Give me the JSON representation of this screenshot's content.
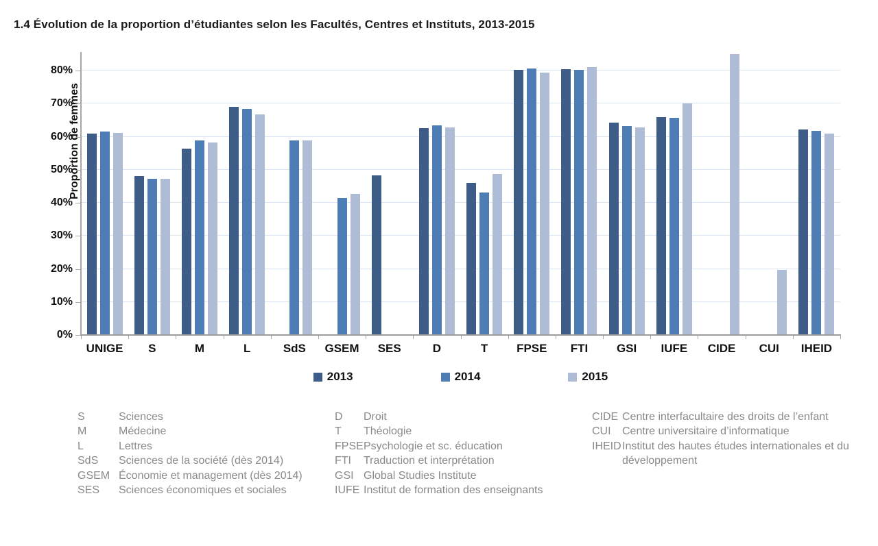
{
  "title": "1.4 Évolution de la proportion d’étudiantes selon les Facultés, Centres et Instituts, 2013-2015",
  "chart_data": {
    "type": "bar",
    "title": "1.4 Évolution de la proportion d’étudiantes selon les Facultés, Centres et Instituts, 2013-2015",
    "xlabel": "",
    "ylabel": "Proportion de femmes",
    "ylim": [
      0,
      80
    ],
    "ytick_step": 10,
    "ytick_suffix": "%",
    "grid": true,
    "legend_position": "bottom",
    "categories": [
      "UNIGE",
      "S",
      "M",
      "L",
      "SdS",
      "GSEM",
      "SES",
      "D",
      "T",
      "FPSE",
      "FTI",
      "GSI",
      "IUFE",
      "CIDE",
      "CUI",
      "IHEID"
    ],
    "series": [
      {
        "name": "2013",
        "color": "#3D5C88",
        "values": [
          61.0,
          48.1,
          56.3,
          69.0,
          null,
          null,
          48.2,
          62.5,
          46.0,
          80.3,
          80.5,
          64.2,
          66.0,
          null,
          null,
          62.2
        ]
      },
      {
        "name": "2014",
        "color": "#4E7DB5",
        "values": [
          61.6,
          47.3,
          58.9,
          68.3,
          58.8,
          41.5,
          null,
          63.5,
          43.2,
          80.7,
          80.3,
          63.3,
          65.7,
          null,
          null,
          61.8
        ]
      },
      {
        "name": "2015",
        "color": "#AFBCD6",
        "values": [
          61.1,
          47.3,
          58.2,
          66.7,
          58.8,
          42.6,
          null,
          62.8,
          48.8,
          79.3,
          81.1,
          62.8,
          70.0,
          85.0,
          19.6,
          60.9
        ]
      }
    ],
    "colors": {
      "gridline": "#dce6f2",
      "axis": "#a6a6a6",
      "label_text": "#111111",
      "footnote_text": "#8a8a8a"
    }
  },
  "footnotes": {
    "col1": [
      {
        "abbr": "S",
        "label": "Sciences"
      },
      {
        "abbr": "M",
        "label": "Médecine"
      },
      {
        "abbr": "L",
        "label": "Lettres"
      },
      {
        "abbr": "SdS",
        "label": "Sciences de la société (dès 2014)"
      },
      {
        "abbr": "GSEM",
        "label": "Économie et management (dès 2014)"
      },
      {
        "abbr": "SES",
        "label": "Sciences économiques et sociales"
      }
    ],
    "col2": [
      {
        "abbr": "D",
        "label": "Droit"
      },
      {
        "abbr": "T",
        "label": "Théologie"
      },
      {
        "abbr": "FPSE",
        "label": "Psychologie et sc. éducation"
      },
      {
        "abbr": "FTI",
        "label": "Traduction et interprétation"
      },
      {
        "abbr": "GSI",
        "label": "Global Studies Institute"
      },
      {
        "abbr": "IUFE",
        "label": "Institut de formation des enseignants"
      }
    ],
    "col3": [
      {
        "abbr": "CIDE",
        "label": "Centre interfacultaire des droits de l’enfant"
      },
      {
        "abbr": "CUI",
        "label": "Centre universitaire d’informatique"
      },
      {
        "abbr": "IHEID",
        "label": "Institut des hautes études internationales et du développement"
      }
    ]
  }
}
